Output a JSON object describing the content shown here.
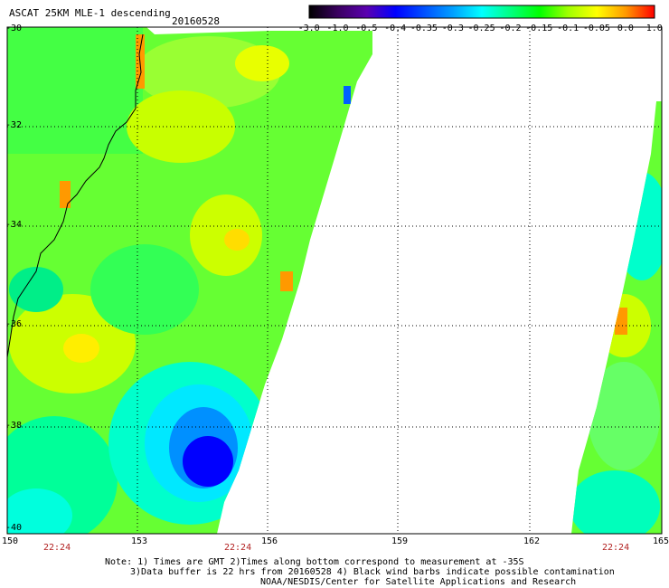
{
  "header": {
    "title": "ASCAT 25KM MLE-1 descending",
    "date": "20160528"
  },
  "colorbar": {
    "labels": [
      "-3.0",
      "-1.0",
      "-0.5",
      "-0.4",
      "-0.35",
      "-0.3",
      "-0.25",
      "-0.2",
      "-0.15",
      "-0.1",
      "-0.05",
      "0.0",
      "1.0"
    ],
    "colors": [
      "#000000",
      "#3a0060",
      "#5a00b0",
      "#0000ff",
      "#0050ff",
      "#00a0ff",
      "#00ffff",
      "#00ff80",
      "#00ff00",
      "#a0ff00",
      "#ffff00",
      "#ff9900",
      "#ff0000"
    ]
  },
  "axes": {
    "lat_labels": [
      "-30",
      "-32",
      "-34",
      "-36",
      "-38",
      "-40"
    ],
    "lon_labels": [
      "150",
      "153",
      "156",
      "159",
      "162",
      "165"
    ],
    "time_labels": [
      "22:24",
      "22:24",
      "22:24"
    ]
  },
  "notes": {
    "line1": "Note: 1) Times are GMT 2)Times along bottom correspond to measurement at -35S",
    "line2": "3)Data buffer is 22 hrs from 20160528 4) Black wind barbs indicate possible contamination",
    "line3": "NOAA/NESDIS/Center for Satellite Applications and Research"
  }
}
